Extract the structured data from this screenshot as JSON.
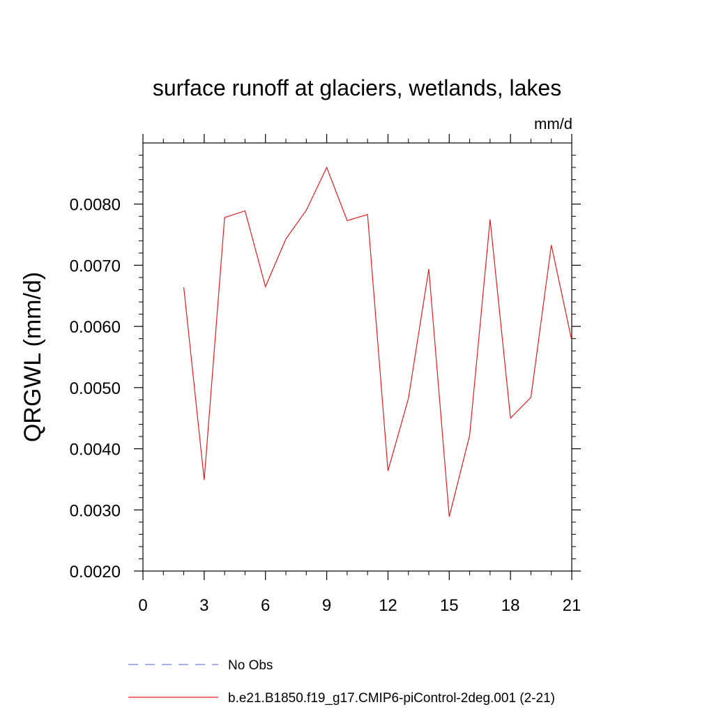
{
  "chart_data": {
    "type": "line",
    "title": "surface runoff at glaciers, wetlands, lakes",
    "units": "mm/d",
    "ylabel": "QRGWL  (mm/d)",
    "xlabel": "",
    "xlim": [
      0,
      21
    ],
    "ylim": [
      0.002,
      0.009
    ],
    "grid": false,
    "x_ticks": [
      0,
      3,
      6,
      9,
      12,
      15,
      18,
      21
    ],
    "x_tick_labels": [
      "0",
      "3",
      "6",
      "9",
      "12",
      "15",
      "18",
      "21"
    ],
    "y_ticks": [
      0.002,
      0.003,
      0.004,
      0.005,
      0.006,
      0.007,
      0.008
    ],
    "y_tick_labels": [
      "0.0020",
      "0.0030",
      "0.0040",
      "0.0050",
      "0.0060",
      "0.0070",
      "0.0080"
    ],
    "legend_position": "bottom",
    "series": [
      {
        "name": "No Obs",
        "color": "#7b7bd6",
        "style": "dashed",
        "x": [],
        "values": []
      },
      {
        "name": "b.e21.B1850.f19_g17.CMIP6-piControl-2deg.001 (2-21)",
        "color": "#e41a1c",
        "style": "solid",
        "x": [
          2,
          3,
          4,
          5,
          6,
          7,
          8,
          9,
          10,
          11,
          12,
          13,
          14,
          15,
          16,
          17,
          18,
          19,
          20,
          21
        ],
        "values": [
          0.00664,
          0.00349,
          0.00778,
          0.00789,
          0.00665,
          0.00743,
          0.0079,
          0.0086,
          0.00773,
          0.00783,
          0.00364,
          0.00482,
          0.00694,
          0.00289,
          0.00422,
          0.00775,
          0.0045,
          0.00484,
          0.00733,
          0.00577
        ]
      }
    ]
  }
}
